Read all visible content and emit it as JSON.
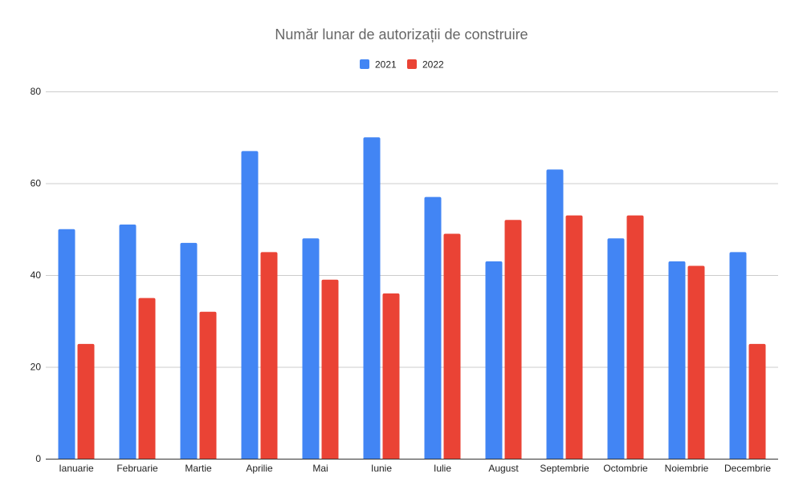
{
  "chart_data": {
    "type": "bar",
    "title": "Număr lunar de autorizații de construire",
    "xlabel": "",
    "ylabel": "",
    "categories": [
      "Ianuarie",
      "Februarie",
      "Martie",
      "Aprilie",
      "Mai",
      "Iunie",
      "Iulie",
      "August",
      "Septembrie",
      "Octombrie",
      "Noiembrie",
      "Decembrie"
    ],
    "series": [
      {
        "name": "2021",
        "color": "#4285f4",
        "values": [
          50,
          51,
          47,
          67,
          48,
          70,
          57,
          43,
          63,
          48,
          43,
          45
        ]
      },
      {
        "name": "2022",
        "color": "#ea4335",
        "values": [
          25,
          35,
          32,
          45,
          39,
          36,
          49,
          52,
          53,
          53,
          42,
          25
        ]
      }
    ],
    "ylim": [
      0,
      80
    ],
    "yticks": [
      "0",
      "20",
      "40",
      "60",
      "80"
    ],
    "grid": true,
    "legend_position": "top"
  }
}
